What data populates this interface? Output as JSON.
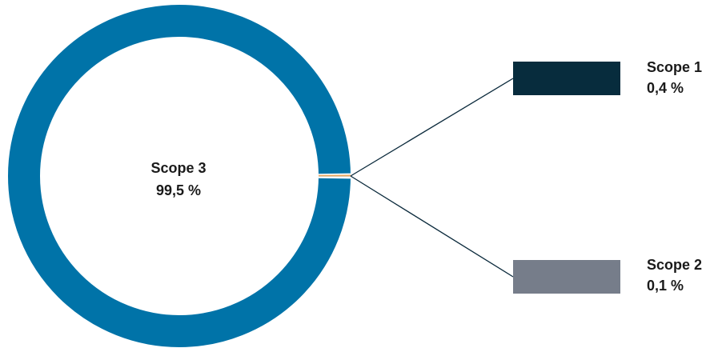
{
  "chart_data": {
    "type": "pie",
    "style": "donut-with-callout",
    "series": [
      {
        "name": "Scope 3",
        "label": "Scope 3",
        "value_label": "99,5 %",
        "value": 99.5,
        "color": "#0073A8"
      },
      {
        "name": "Scope 1",
        "label": "Scope 1",
        "value_label": "0,4 %",
        "value": 0.4,
        "color": "#072C3D"
      },
      {
        "name": "Scope 2",
        "label": "Scope 2",
        "value_label": "0,1 %",
        "value": 0.1,
        "color": "#767D8A"
      }
    ],
    "separator_color": "#E9A55C",
    "connector_color": "#0B2A3C",
    "legend": "right"
  }
}
